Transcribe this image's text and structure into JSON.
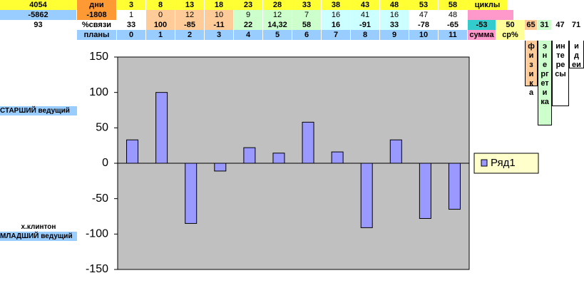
{
  "sheet": {
    "rows": [
      [
        "4054",
        "дни",
        "3",
        "8",
        "13",
        "18",
        "23",
        "28",
        "33",
        "38",
        "43",
        "48",
        "53",
        "58",
        "циклы"
      ],
      [
        "-5862",
        "-1808",
        "1",
        "0",
        "12",
        "10",
        "9",
        "12",
        "7",
        "16",
        "41",
        "16",
        "47",
        "48"
      ],
      [
        "93",
        "%связи",
        "33",
        "100",
        "-85",
        "-11",
        "22",
        "14,32",
        "58",
        "16",
        "-91",
        "33",
        "-78",
        "-65",
        "-53",
        "50",
        "65",
        "31",
        "47",
        "71"
      ],
      [
        "планы",
        "0",
        "1",
        "2",
        "3",
        "4",
        "5",
        "6",
        "7",
        "8",
        "9",
        "10",
        "11",
        "сумма",
        "ср%"
      ]
    ],
    "vertical": [
      "физика",
      "энергетика",
      "интересы",
      "идеи"
    ],
    "labels": [
      "СТАРШИЙ ведущий",
      "х.клинтон",
      "МЛАДШИЙ ведущий"
    ]
  },
  "chart_data": {
    "type": "bar",
    "series": [
      {
        "name": "Ряд1",
        "color": "#9999ff",
        "values": [
          33,
          100,
          -85,
          -11,
          22,
          14.32,
          58,
          16,
          -91,
          33,
          -78,
          -65
        ]
      }
    ],
    "ylim": [
      -150,
      150
    ],
    "yticks": [
      -150,
      -100,
      -50,
      0,
      50,
      100,
      150
    ],
    "grid": false,
    "legend": "right"
  }
}
